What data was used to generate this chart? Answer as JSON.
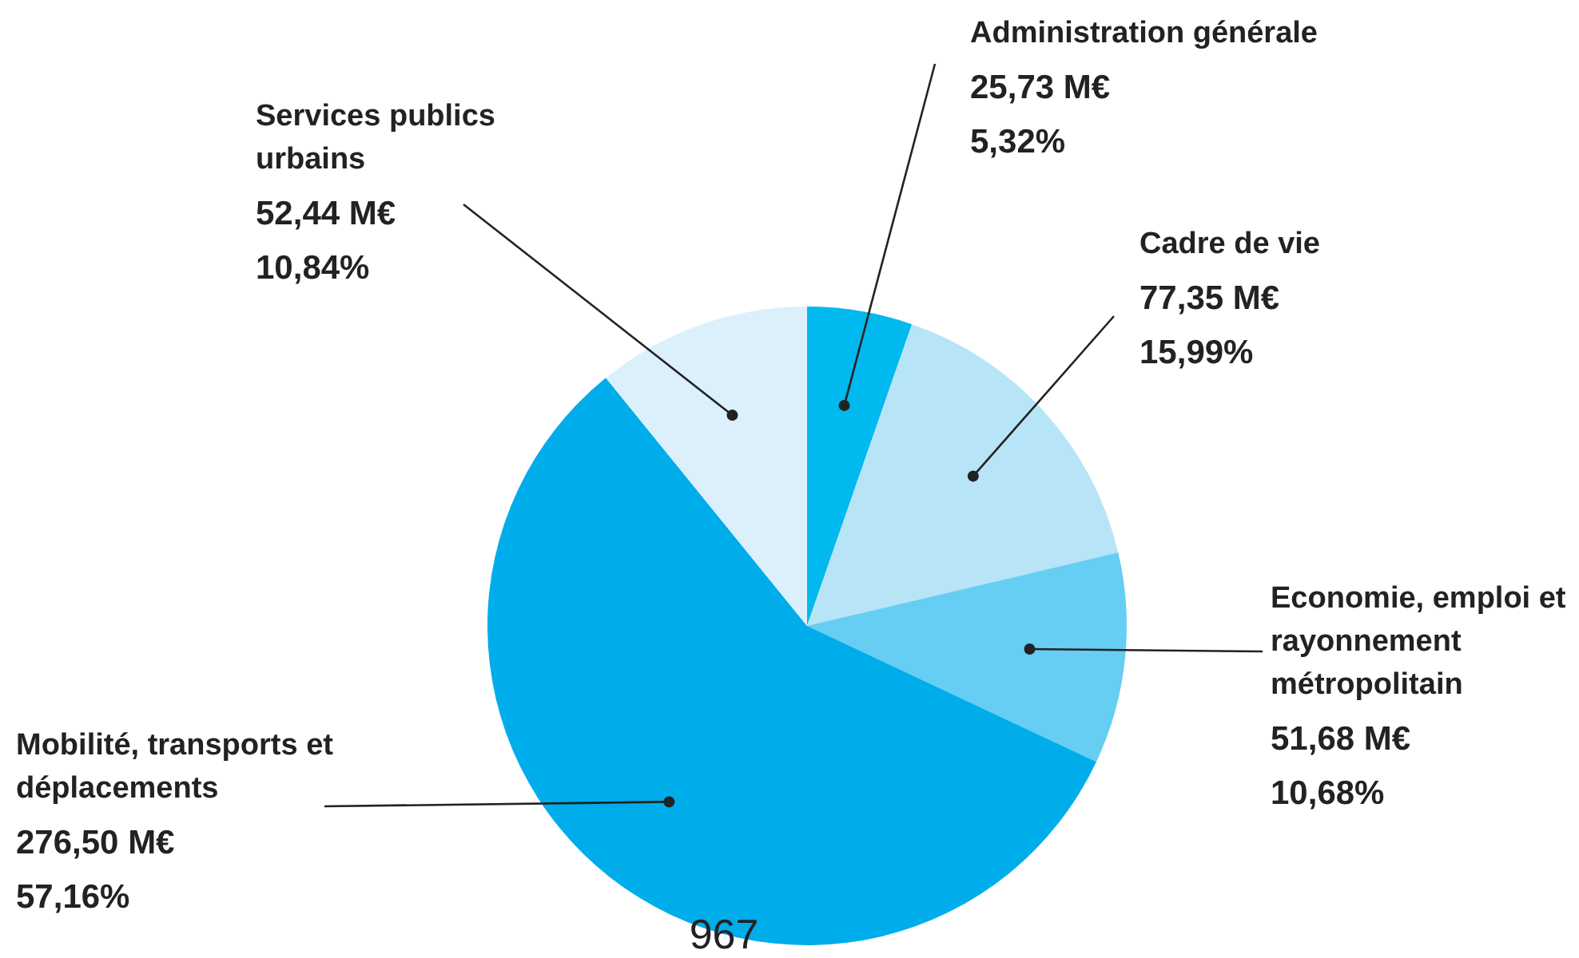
{
  "chart_data": {
    "type": "pie",
    "categories": [
      "Administration générale",
      "Cadre de vie",
      "Economie, emploi et rayonnement métropolitain",
      "Mobilité, transports et déplacements",
      "Services publics urbains"
    ],
    "values": [
      25.73,
      77.35,
      51.68,
      276.5,
      52.44
    ],
    "colors": [
      "#00b9ee",
      "#b8e4f7",
      "#66cdf3",
      "#00adeb",
      "#dbf0fb"
    ],
    "value_labels": [
      "25,73 M€\n5,32%",
      "77,35 M€\n15,99%",
      "51,68 M€\n10,68%",
      "276,50 M€\n57,16%",
      "52,44 M€\n10,84%"
    ],
    "legend": false,
    "annotations": [
      "967"
    ]
  }
}
